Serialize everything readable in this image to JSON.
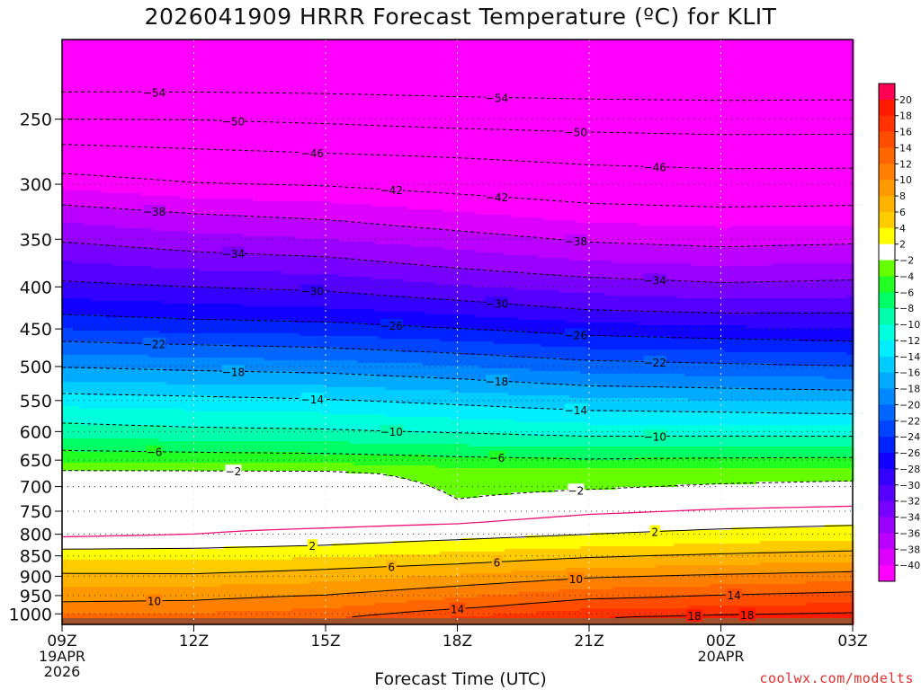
{
  "chart_data": {
    "type": "time-height contour",
    "title": "2026041909 HRRR Forecast Temperature (ºC) for KLIT",
    "xlabel": "Forecast Time (UTC)",
    "credit": "coolwx.com/modelts",
    "x_ticks": [
      {
        "hour": 0,
        "label": "09Z",
        "date": "19APR",
        "year": "2026"
      },
      {
        "hour": 3,
        "label": "12Z"
      },
      {
        "hour": 6,
        "label": "15Z"
      },
      {
        "hour": 9,
        "label": "18Z"
      },
      {
        "hour": 12,
        "label": "21Z"
      },
      {
        "hour": 15,
        "label": "00Z",
        "date": "20APR"
      },
      {
        "hour": 18,
        "label": "03Z"
      }
    ],
    "xlim": [
      0,
      18
    ],
    "ylim": [
      1030,
      200
    ],
    "y_ticks": [
      250,
      300,
      350,
      400,
      450,
      500,
      550,
      600,
      650,
      700,
      750,
      800,
      850,
      900,
      950,
      1000
    ],
    "surface_pressure_hpa": [
      1012,
      1012,
      1012,
      1012,
      1012,
      1012,
      1013,
      1012,
      1012,
      1012,
      1012,
      1012,
      1012,
      1012,
      1012,
      1012,
      1012,
      1012,
      1012
    ],
    "level_pressures_hpa": [
      1010,
      980,
      950,
      925,
      900,
      875,
      850,
      825,
      800,
      775,
      750,
      725,
      700,
      675,
      650,
      625,
      600,
      575,
      550,
      525,
      500,
      475,
      450,
      425,
      400,
      375,
      350,
      325,
      300,
      275,
      250,
      225,
      200
    ],
    "temperature_profiles_c": {
      "hours": [
        0,
        3,
        6,
        9,
        12,
        15,
        18
      ],
      "values": [
        [
          12.5,
          10.6,
          9.2,
          7.9,
          6.5,
          4.8,
          3.2,
          1.3,
          -0.4,
          -0.8,
          0.5,
          1.1,
          0.0,
          -1.3,
          -4.4,
          -6.7,
          -9.1,
          -10.7,
          -12.9,
          -15.5,
          -18.1,
          -20.9,
          -24.0,
          -26.8,
          -29.4,
          -31.7,
          -34.3,
          -37.0,
          -40.6,
          -44.6,
          -50.0,
          -55.5,
          -57.5
        ],
        [
          12.8,
          10.8,
          9.4,
          8.0,
          6.4,
          4.8,
          3.2,
          1.5,
          0.0,
          -0.6,
          0.5,
          1.2,
          0.0,
          -1.3,
          -4.7,
          -7.0,
          -9.5,
          -11.2,
          -13.3,
          -16.0,
          -18.6,
          -21.4,
          -24.7,
          -27.4,
          -30.0,
          -32.7,
          -35.3,
          -38.1,
          -41.8,
          -45.4,
          -50.1,
          -55.5,
          -57.5
        ],
        [
          13.6,
          11.7,
          10.1,
          8.6,
          7.1,
          5.5,
          3.7,
          2.0,
          0.6,
          -0.5,
          0.4,
          1.1,
          0.0,
          -1.4,
          -4.8,
          -7.3,
          -9.7,
          -11.5,
          -13.8,
          -16.3,
          -19.0,
          -21.9,
          -25.0,
          -27.9,
          -30.5,
          -33.2,
          -36.0,
          -38.7,
          -42.2,
          -46.0,
          -50.6,
          -55.6,
          -57.5
        ],
        [
          16.1,
          13.5,
          11.6,
          10.0,
          8.3,
          6.4,
          4.6,
          2.8,
          1.2,
          -0.1,
          -1.2,
          -2.0,
          -2.5,
          -2.9,
          -5.4,
          -7.8,
          -10.2,
          -12.3,
          -14.6,
          -17.2,
          -19.9,
          -22.8,
          -25.9,
          -28.9,
          -31.8,
          -34.5,
          -37.1,
          -39.9,
          -43.1,
          -46.5,
          -51.3,
          -55.8,
          -57.5
        ],
        [
          17.9,
          15.5,
          13.3,
          11.5,
          9.7,
          7.6,
          5.7,
          3.6,
          2.0,
          0.8,
          -0.3,
          -1.3,
          -2.2,
          -3.1,
          -5.8,
          -8.3,
          -10.8,
          -13.1,
          -15.5,
          -18.3,
          -21.0,
          -24.0,
          -27.0,
          -30.2,
          -32.8,
          -35.7,
          -38.3,
          -41.0,
          -44.0,
          -47.2,
          -51.7,
          -56.0,
          -57.5
        ],
        [
          18.6,
          16.1,
          14.1,
          12.2,
          10.4,
          8.3,
          6.4,
          4.3,
          2.6,
          1.3,
          0.2,
          -0.9,
          -1.8,
          -2.7,
          -5.6,
          -8.2,
          -10.8,
          -13.3,
          -15.9,
          -18.7,
          -21.5,
          -24.4,
          -27.6,
          -30.7,
          -33.5,
          -36.2,
          -38.8,
          -41.4,
          -44.4,
          -47.6,
          -52.0,
          -56.0,
          -57.5
        ],
        [
          19.1,
          16.6,
          14.7,
          12.9,
          11.0,
          8.8,
          7.0,
          4.9,
          3.1,
          1.7,
          0.5,
          -0.7,
          -1.6,
          -2.5,
          -5.5,
          -8.1,
          -10.9,
          -13.6,
          -16.2,
          -19.1,
          -21.9,
          -24.9,
          -27.9,
          -30.6,
          -33.2,
          -35.9,
          -38.5,
          -41.2,
          -44.3,
          -47.6,
          -51.9,
          -56.0,
          -57.5
        ]
      ]
    },
    "contour_levels_c": [
      -54,
      -50,
      -46,
      -42,
      -38,
      -34,
      -30,
      -26,
      -22,
      -18,
      -14,
      -10,
      -6,
      -2,
      2,
      6,
      10,
      14,
      18
    ],
    "color_scale": {
      "levels": [
        20,
        18,
        16,
        14,
        12,
        10,
        8,
        6,
        4,
        2,
        -2,
        -4,
        -6,
        -8,
        -10,
        -12,
        -14,
        -16,
        -18,
        -20,
        -22,
        -24,
        -26,
        -28,
        -30,
        -32,
        -34,
        -36,
        -38,
        -40
      ],
      "colors": [
        {
          "range": ">20",
          "color": "#ff0055"
        },
        {
          "range": "18 to 20",
          "color": "#ff1a00"
        },
        {
          "range": "16 to 18",
          "color": "#ff3300"
        },
        {
          "range": "14 to 16",
          "color": "#ff4d00"
        },
        {
          "range": "12 to 14",
          "color": "#ff6600"
        },
        {
          "range": "10 to 12",
          "color": "#ff8000"
        },
        {
          "range": "8 to 10",
          "color": "#ff9900"
        },
        {
          "range": "6 to 8",
          "color": "#ffb300"
        },
        {
          "range": "4 to 6",
          "color": "#ffcc00"
        },
        {
          "range": "2 to 4",
          "color": "#ffff00"
        },
        {
          "range": "-2 to 2",
          "color": "#ffffff"
        },
        {
          "range": "-4 to -2",
          "color": "#66ff00"
        },
        {
          "range": "-6 to -4",
          "color": "#22ff22"
        },
        {
          "range": "-8 to -6",
          "color": "#00ff66"
        },
        {
          "range": "-10 to -8",
          "color": "#00ffaa"
        },
        {
          "range": "-12 to -10",
          "color": "#00ffdd"
        },
        {
          "range": "-14 to -12",
          "color": "#00eeff"
        },
        {
          "range": "-16 to -14",
          "color": "#00ccff"
        },
        {
          "range": "-18 to -16",
          "color": "#00aaff"
        },
        {
          "range": "-20 to -18",
          "color": "#0088ff"
        },
        {
          "range": "-22 to -20",
          "color": "#0066ff"
        },
        {
          "range": "-24 to -22",
          "color": "#0044ff"
        },
        {
          "range": "-26 to -24",
          "color": "#0022ff"
        },
        {
          "range": "-28 to -26",
          "color": "#1100ff"
        },
        {
          "range": "-30 to -28",
          "color": "#3300ff"
        },
        {
          "range": "-32 to -30",
          "color": "#5500ff"
        },
        {
          "range": "-34 to -32",
          "color": "#7700ff"
        },
        {
          "range": "-36 to -34",
          "color": "#9900ff"
        },
        {
          "range": "-38 to -36",
          "color": "#bb00ff"
        },
        {
          "range": "-40 to -38",
          "color": "#dd00ff"
        },
        {
          "range": "<-40",
          "color": "#ff00ff"
        }
      ],
      "ground_color": "#a0522d",
      "freezing_line_color": "#ee1177"
    }
  }
}
